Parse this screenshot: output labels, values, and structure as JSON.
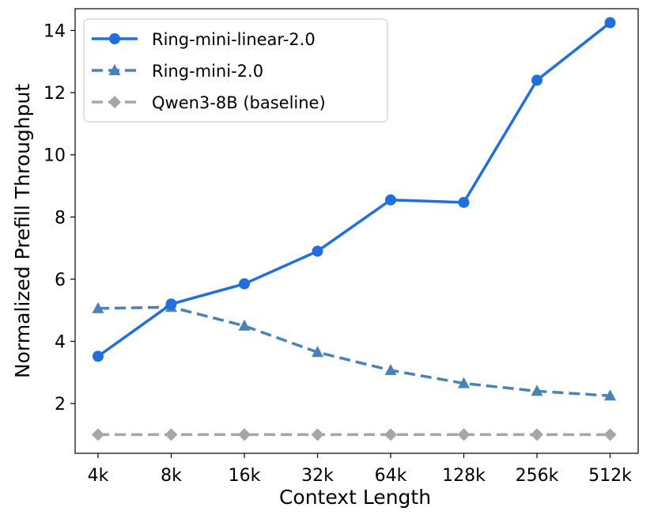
{
  "chart_data": {
    "type": "line",
    "xlabel": "Context Length",
    "ylabel": "Normalized Prefill Throughput",
    "categories": [
      "4k",
      "8k",
      "16k",
      "32k",
      "64k",
      "128k",
      "256k",
      "512k"
    ],
    "ylim": [
      0.4,
      14.7
    ],
    "yticks": [
      2,
      4,
      6,
      8,
      10,
      12,
      14
    ],
    "grid": false,
    "legend_position": "top-left",
    "series": [
      {
        "name": "Ring-mini-linear-2.0",
        "values": [
          3.52,
          5.2,
          5.85,
          6.9,
          8.55,
          8.47,
          12.4,
          14.25
        ],
        "color": "#1f6fe0",
        "line_style": "solid",
        "marker": "circle"
      },
      {
        "name": "Ring-mini-2.0",
        "values": [
          5.06,
          5.1,
          4.5,
          3.65,
          3.07,
          2.65,
          2.4,
          2.25
        ],
        "color": "#4a82b8",
        "line_style": "dashed",
        "marker": "triangle"
      },
      {
        "name": "Qwen3-8B (baseline)",
        "values": [
          1.0,
          1.0,
          1.0,
          1.0,
          1.0,
          1.0,
          1.0,
          1.0
        ],
        "color": "#a6a6a6",
        "line_style": "dashed",
        "marker": "diamond"
      }
    ]
  }
}
